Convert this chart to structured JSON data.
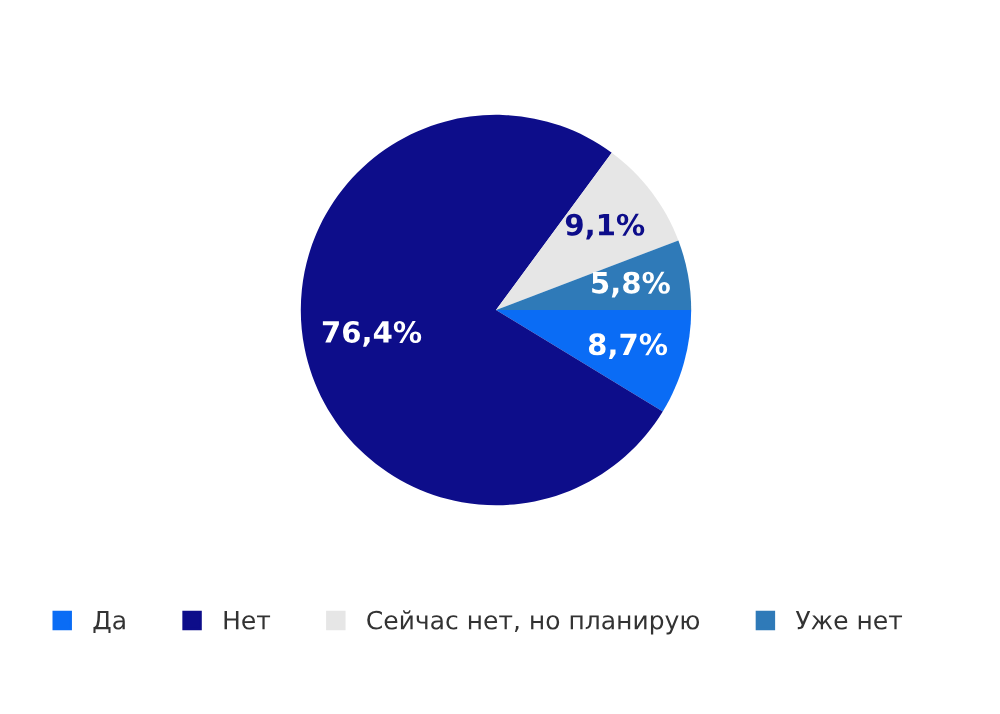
{
  "chart_data": {
    "type": "pie",
    "categories": [
      "Да",
      "Нет",
      "Сейчас нет, но планирую",
      "Уже нет"
    ],
    "values": [
      8.7,
      76.4,
      9.1,
      5.8
    ],
    "value_labels": [
      "8,7%",
      "76,4%",
      "9,1%",
      "5,8%"
    ],
    "colors": [
      "#0a6cf5",
      "#0d0d8a",
      "#e6e6e6",
      "#2f7ab8"
    ],
    "legend": "bottom"
  }
}
